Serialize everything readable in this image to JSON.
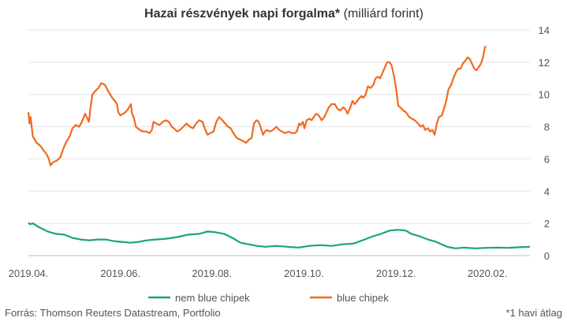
{
  "chart_data": {
    "type": "line",
    "title": "Hazai részvények napi forgalma*",
    "subtitle": "(milliárd forint)",
    "ylabel": "",
    "xlabel": "",
    "ylim": [
      0,
      14
    ],
    "yticks": [
      0,
      2,
      4,
      6,
      8,
      10,
      12,
      14
    ],
    "y_axis_side": "right",
    "grid": true,
    "x_range": [
      2019.25,
      2020.16
    ],
    "x_ticks": [
      {
        "label": "2019.04.",
        "x": 2019.25
      },
      {
        "label": "2019.06.",
        "x": 2019.417
      },
      {
        "label": "2019.08.",
        "x": 2019.583
      },
      {
        "label": "2019.10.",
        "x": 2019.75
      },
      {
        "label": "2019.12.",
        "x": 2019.917
      },
      {
        "label": "2020.02.",
        "x": 2020.083
      }
    ],
    "legend_position": "bottom",
    "series": [
      {
        "name": "nem blue chipek",
        "color": "#1aa383",
        "points": [
          [
            2019.25,
            2.05
          ],
          [
            2019.253,
            1.95
          ],
          [
            2019.258,
            2.0
          ],
          [
            2019.27,
            1.75
          ],
          [
            2019.285,
            1.5
          ],
          [
            2019.3,
            1.35
          ],
          [
            2019.315,
            1.3
          ],
          [
            2019.33,
            1.1
          ],
          [
            2019.345,
            1.0
          ],
          [
            2019.36,
            0.95
          ],
          [
            2019.375,
            1.0
          ],
          [
            2019.39,
            1.0
          ],
          [
            2019.405,
            0.9
          ],
          [
            2019.42,
            0.85
          ],
          [
            2019.435,
            0.8
          ],
          [
            2019.45,
            0.85
          ],
          [
            2019.465,
            0.95
          ],
          [
            2019.48,
            1.0
          ],
          [
            2019.5,
            1.05
          ],
          [
            2019.52,
            1.15
          ],
          [
            2019.54,
            1.3
          ],
          [
            2019.56,
            1.35
          ],
          [
            2019.575,
            1.5
          ],
          [
            2019.59,
            1.45
          ],
          [
            2019.605,
            1.35
          ],
          [
            2019.62,
            1.1
          ],
          [
            2019.635,
            0.8
          ],
          [
            2019.65,
            0.7
          ],
          [
            2019.665,
            0.6
          ],
          [
            2019.68,
            0.55
          ],
          [
            2019.7,
            0.6
          ],
          [
            2019.72,
            0.55
          ],
          [
            2019.74,
            0.5
          ],
          [
            2019.76,
            0.6
          ],
          [
            2019.78,
            0.65
          ],
          [
            2019.8,
            0.6
          ],
          [
            2019.82,
            0.7
          ],
          [
            2019.84,
            0.75
          ],
          [
            2019.86,
            1.0
          ],
          [
            2019.875,
            1.2
          ],
          [
            2019.89,
            1.35
          ],
          [
            2019.905,
            1.55
          ],
          [
            2019.92,
            1.6
          ],
          [
            2019.935,
            1.55
          ],
          [
            2019.945,
            1.35
          ],
          [
            2019.96,
            1.2
          ],
          [
            2019.975,
            1.0
          ],
          [
            2019.99,
            0.85
          ],
          [
            2020.0,
            0.7
          ],
          [
            2020.01,
            0.55
          ],
          [
            2020.025,
            0.45
          ],
          [
            2020.04,
            0.5
          ],
          [
            2020.06,
            0.45
          ],
          [
            2020.08,
            0.48
          ],
          [
            2020.1,
            0.5
          ],
          [
            2020.12,
            0.48
          ],
          [
            2020.14,
            0.52
          ],
          [
            2020.16,
            0.55
          ]
        ]
      },
      {
        "name": "blue chipek",
        "color": "#f06a1e",
        "points": [
          [
            2019.25,
            8.9
          ],
          [
            2019.252,
            8.2
          ],
          [
            2019.254,
            8.6
          ],
          [
            2019.258,
            7.4
          ],
          [
            2019.265,
            7.0
          ],
          [
            2019.272,
            6.8
          ],
          [
            2019.278,
            6.5
          ],
          [
            2019.283,
            6.3
          ],
          [
            2019.287,
            6.0
          ],
          [
            2019.29,
            5.6
          ],
          [
            2019.295,
            5.8
          ],
          [
            2019.302,
            5.9
          ],
          [
            2019.308,
            6.1
          ],
          [
            2019.313,
            6.6
          ],
          [
            2019.318,
            7.0
          ],
          [
            2019.325,
            7.4
          ],
          [
            2019.33,
            7.9
          ],
          [
            2019.336,
            8.1
          ],
          [
            2019.342,
            8.0
          ],
          [
            2019.347,
            8.3
          ],
          [
            2019.353,
            8.8
          ],
          [
            2019.357,
            8.5
          ],
          [
            2019.36,
            8.3
          ],
          [
            2019.362,
            9.0
          ],
          [
            2019.366,
            10.0
          ],
          [
            2019.371,
            10.2
          ],
          [
            2019.377,
            10.4
          ],
          [
            2019.382,
            10.7
          ],
          [
            2019.389,
            10.6
          ],
          [
            2019.395,
            10.2
          ],
          [
            2019.402,
            9.8
          ],
          [
            2019.407,
            9.6
          ],
          [
            2019.411,
            9.4
          ],
          [
            2019.413,
            8.9
          ],
          [
            2019.417,
            8.7
          ],
          [
            2019.422,
            8.8
          ],
          [
            2019.426,
            8.9
          ],
          [
            2019.431,
            9.1
          ],
          [
            2019.436,
            9.4
          ],
          [
            2019.438,
            8.8
          ],
          [
            2019.441,
            8.6
          ],
          [
            2019.445,
            8.0
          ],
          [
            2019.452,
            7.8
          ],
          [
            2019.458,
            7.7
          ],
          [
            2019.464,
            7.7
          ],
          [
            2019.47,
            7.6
          ],
          [
            2019.474,
            7.8
          ],
          [
            2019.477,
            8.3
          ],
          [
            2019.482,
            8.2
          ],
          [
            2019.488,
            8.1
          ],
          [
            2019.494,
            8.3
          ],
          [
            2019.5,
            8.4
          ],
          [
            2019.505,
            8.3
          ],
          [
            2019.51,
            8.0
          ],
          [
            2019.514,
            7.9
          ],
          [
            2019.52,
            7.7
          ],
          [
            2019.525,
            7.8
          ],
          [
            2019.531,
            8.0
          ],
          [
            2019.537,
            8.2
          ],
          [
            2019.543,
            8.0
          ],
          [
            2019.549,
            7.9
          ],
          [
            2019.554,
            8.2
          ],
          [
            2019.56,
            8.4
          ],
          [
            2019.566,
            8.3
          ],
          [
            2019.57,
            7.9
          ],
          [
            2019.575,
            7.5
          ],
          [
            2019.58,
            7.6
          ],
          [
            2019.586,
            7.7
          ],
          [
            2019.591,
            8.3
          ],
          [
            2019.596,
            8.6
          ],
          [
            2019.602,
            8.4
          ],
          [
            2019.607,
            8.2
          ],
          [
            2019.612,
            8.0
          ],
          [
            2019.617,
            7.9
          ],
          [
            2019.622,
            7.6
          ],
          [
            2019.628,
            7.3
          ],
          [
            2019.634,
            7.2
          ],
          [
            2019.64,
            7.1
          ],
          [
            2019.645,
            7.0
          ],
          [
            2019.65,
            7.2
          ],
          [
            2019.655,
            7.3
          ],
          [
            2019.659,
            8.2
          ],
          [
            2019.664,
            8.4
          ],
          [
            2019.668,
            8.3
          ],
          [
            2019.672,
            7.9
          ],
          [
            2019.676,
            7.5
          ],
          [
            2019.679,
            7.7
          ],
          [
            2019.683,
            7.8
          ],
          [
            2019.688,
            7.7
          ],
          [
            2019.694,
            7.8
          ],
          [
            2019.7,
            8.0
          ],
          [
            2019.705,
            7.8
          ],
          [
            2019.71,
            7.7
          ],
          [
            2019.716,
            7.6
          ],
          [
            2019.722,
            7.7
          ],
          [
            2019.727,
            7.6
          ],
          [
            2019.733,
            7.6
          ],
          [
            2019.737,
            7.7
          ],
          [
            2019.741,
            8.2
          ],
          [
            2019.744,
            8.1
          ],
          [
            2019.748,
            8.3
          ],
          [
            2019.751,
            7.9
          ],
          [
            2019.755,
            8.4
          ],
          [
            2019.76,
            8.5
          ],
          [
            2019.764,
            8.4
          ],
          [
            2019.768,
            8.6
          ],
          [
            2019.772,
            8.8
          ],
          [
            2019.777,
            8.7
          ],
          [
            2019.782,
            8.4
          ],
          [
            2019.787,
            8.6
          ],
          [
            2019.791,
            8.9
          ],
          [
            2019.795,
            9.2
          ],
          [
            2019.8,
            9.4
          ],
          [
            2019.806,
            9.4
          ],
          [
            2019.811,
            9.1
          ],
          [
            2019.816,
            9.0
          ],
          [
            2019.821,
            9.2
          ],
          [
            2019.825,
            9.1
          ],
          [
            2019.829,
            8.8
          ],
          [
            2019.834,
            9.2
          ],
          [
            2019.838,
            9.6
          ],
          [
            2019.842,
            9.4
          ],
          [
            2019.845,
            9.5
          ],
          [
            2019.849,
            9.7
          ],
          [
            2019.854,
            9.9
          ],
          [
            2019.858,
            9.8
          ],
          [
            2019.862,
            10.0
          ],
          [
            2019.866,
            10.5
          ],
          [
            2019.871,
            10.4
          ],
          [
            2019.876,
            10.6
          ],
          [
            2019.88,
            11.0
          ],
          [
            2019.884,
            11.1
          ],
          [
            2019.888,
            11.0
          ],
          [
            2019.892,
            11.3
          ],
          [
            2019.897,
            11.7
          ],
          [
            2019.901,
            12.0
          ],
          [
            2019.905,
            12.0
          ],
          [
            2019.909,
            11.8
          ],
          [
            2019.913,
            11.2
          ],
          [
            2019.917,
            10.4
          ],
          [
            2019.921,
            9.3
          ],
          [
            2019.925,
            9.2
          ],
          [
            2019.93,
            9.0
          ],
          [
            2019.935,
            8.9
          ],
          [
            2019.941,
            8.6
          ],
          [
            2019.946,
            8.5
          ],
          [
            2019.951,
            8.4
          ],
          [
            2019.957,
            8.2
          ],
          [
            2019.962,
            8.0
          ],
          [
            2019.966,
            8.1
          ],
          [
            2019.97,
            7.8
          ],
          [
            2019.975,
            7.9
          ],
          [
            2019.979,
            7.7
          ],
          [
            2019.983,
            7.8
          ],
          [
            2019.987,
            7.5
          ],
          [
            2019.991,
            8.2
          ],
          [
            2019.995,
            8.6
          ],
          [
            2020.0,
            8.7
          ],
          [
            2020.004,
            9.1
          ],
          [
            2020.008,
            9.6
          ],
          [
            2020.012,
            10.3
          ],
          [
            2020.017,
            10.6
          ],
          [
            2020.021,
            11.0
          ],
          [
            2020.026,
            11.4
          ],
          [
            2020.03,
            11.6
          ],
          [
            2020.034,
            11.6
          ],
          [
            2020.038,
            11.9
          ],
          [
            2020.043,
            12.1
          ],
          [
            2020.047,
            12.3
          ],
          [
            2020.051,
            12.2
          ],
          [
            2020.055,
            11.9
          ],
          [
            2020.059,
            11.6
          ],
          [
            2020.063,
            11.5
          ],
          [
            2020.067,
            11.7
          ],
          [
            2020.071,
            11.9
          ],
          [
            2020.075,
            12.3
          ],
          [
            2020.078,
            12.9
          ],
          [
            2020.08,
            13.0
          ]
        ]
      }
    ]
  },
  "footer": {
    "source": "Forrás: Thomson Reuters Datastream, Portfolio",
    "note": "*1 havi átlag"
  }
}
